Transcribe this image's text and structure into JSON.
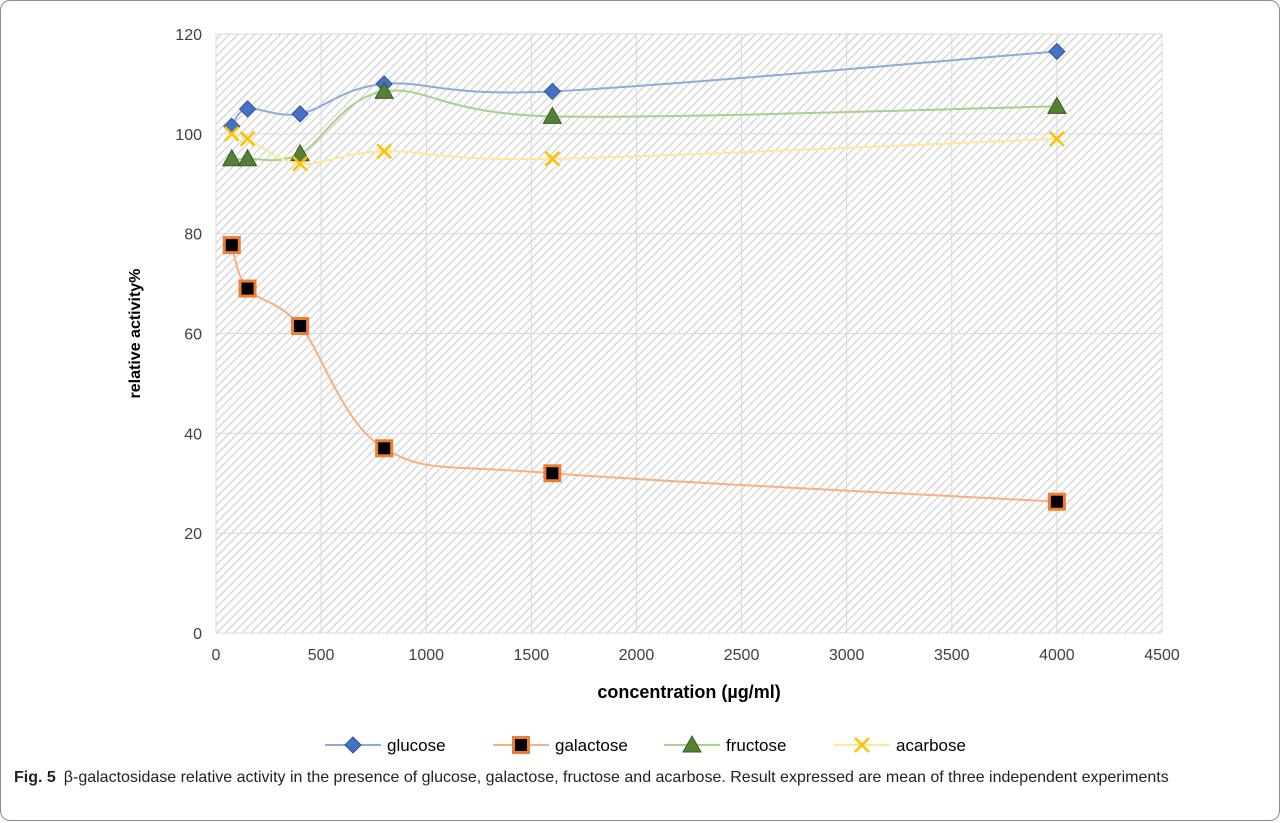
{
  "chart_data": {
    "type": "line",
    "xlabel": "concentration (µg/ml)",
    "ylabel": "relative activity%",
    "xlim": [
      0,
      4500
    ],
    "ylim": [
      0,
      120
    ],
    "x_ticks": [
      0,
      500,
      1000,
      1500,
      2000,
      2500,
      3000,
      3500,
      4000,
      4500
    ],
    "y_ticks": [
      0,
      20,
      40,
      60,
      80,
      100,
      120
    ],
    "grid": true,
    "legend": "bottom",
    "x": [
      75,
      150,
      400,
      800,
      1600,
      4000
    ],
    "series": [
      {
        "name": "glucose",
        "color": "#4472c4",
        "line_color": "#8faadc",
        "marker": "diamond",
        "values": [
          101.5,
          105,
          104,
          110,
          108.5,
          116.5
        ]
      },
      {
        "name": "galactose",
        "color": "#ed7d31",
        "line_color": "#f4b183",
        "marker": "square",
        "values": [
          77.7,
          69,
          61.5,
          37,
          32,
          26.3
        ]
      },
      {
        "name": "fructose",
        "color": "#548235",
        "line_color": "#a9d18e",
        "marker": "triangle",
        "values": [
          95,
          95,
          96,
          108.5,
          103.5,
          105.5
        ]
      },
      {
        "name": "acarbose",
        "color": "#ffc000",
        "line_color": "#ffe699",
        "marker": "x",
        "values": [
          100,
          99,
          94,
          96.5,
          95,
          99
        ]
      }
    ]
  },
  "caption": {
    "label": "Fig. 5",
    "text": "β-galactosidase relative activity in the presence of glucose, galactose, fructose and acarbose. Result expressed are mean of three independent experiments"
  }
}
